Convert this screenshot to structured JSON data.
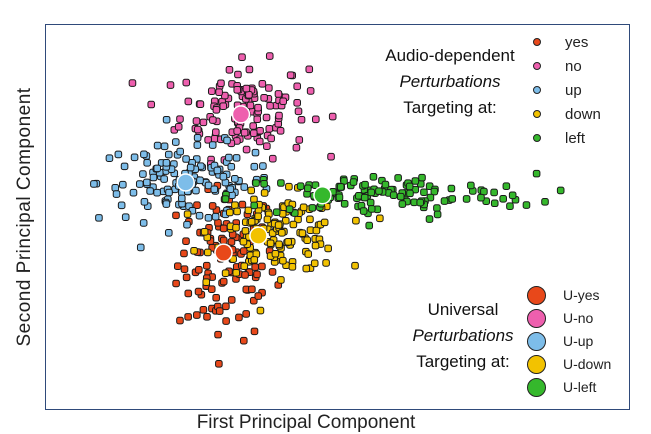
{
  "chart_data": {
    "type": "scatter",
    "title": "",
    "xlabel": "First Principal Component",
    "ylabel": "Second Principal Component",
    "xlim": [
      -4,
      6
    ],
    "ylim": [
      -5,
      4
    ],
    "grid": false,
    "ticks_shown": false,
    "legend_placement": "right",
    "captions": {
      "audio_dependent": {
        "line1": "Audio-dependent",
        "line2": "Perturbations",
        "line3": "Targeting at:"
      },
      "universal": {
        "line1": "Universal",
        "line2": "Perturbations",
        "line3": "Targeting at:"
      }
    },
    "series": [
      {
        "name": "yes",
        "group": "audio-dependent",
        "color": "#e8481a",
        "center": [
          -0.9,
          -1.6
        ],
        "spread": [
          0.42,
          0.9
        ],
        "count": 120
      },
      {
        "name": "no",
        "group": "audio-dependent",
        "color": "#ee5fae",
        "center": [
          -0.6,
          2.0
        ],
        "spread": [
          0.55,
          0.55
        ],
        "count": 140
      },
      {
        "name": "up",
        "group": "audio-dependent",
        "color": "#7dbde9",
        "center": [
          -1.6,
          0.3
        ],
        "spread": [
          0.75,
          0.45
        ],
        "count": 140
      },
      {
        "name": "down",
        "group": "audio-dependent",
        "color": "#f2c200",
        "center": [
          0.0,
          -0.9
        ],
        "spread": [
          0.55,
          0.45
        ],
        "count": 140
      },
      {
        "name": "left",
        "group": "audio-dependent",
        "color": "#35b82c",
        "center": [
          1.8,
          0.0
        ],
        "spread": [
          1.3,
          0.25
        ],
        "count": 120
      },
      {
        "name": "U-yes",
        "group": "universal",
        "color": "#e8481a",
        "x": -0.95,
        "y": -1.35
      },
      {
        "name": "U-no",
        "group": "universal",
        "color": "#ee5fae",
        "x": -0.65,
        "y": 1.9
      },
      {
        "name": "U-up",
        "group": "universal",
        "color": "#7dbde9",
        "x": -1.6,
        "y": 0.3
      },
      {
        "name": "U-down",
        "group": "universal",
        "color": "#f2c200",
        "x": -0.35,
        "y": -0.95
      },
      {
        "name": "U-left",
        "group": "universal",
        "color": "#35b82c",
        "x": 0.75,
        "y": 0.0
      }
    ]
  }
}
